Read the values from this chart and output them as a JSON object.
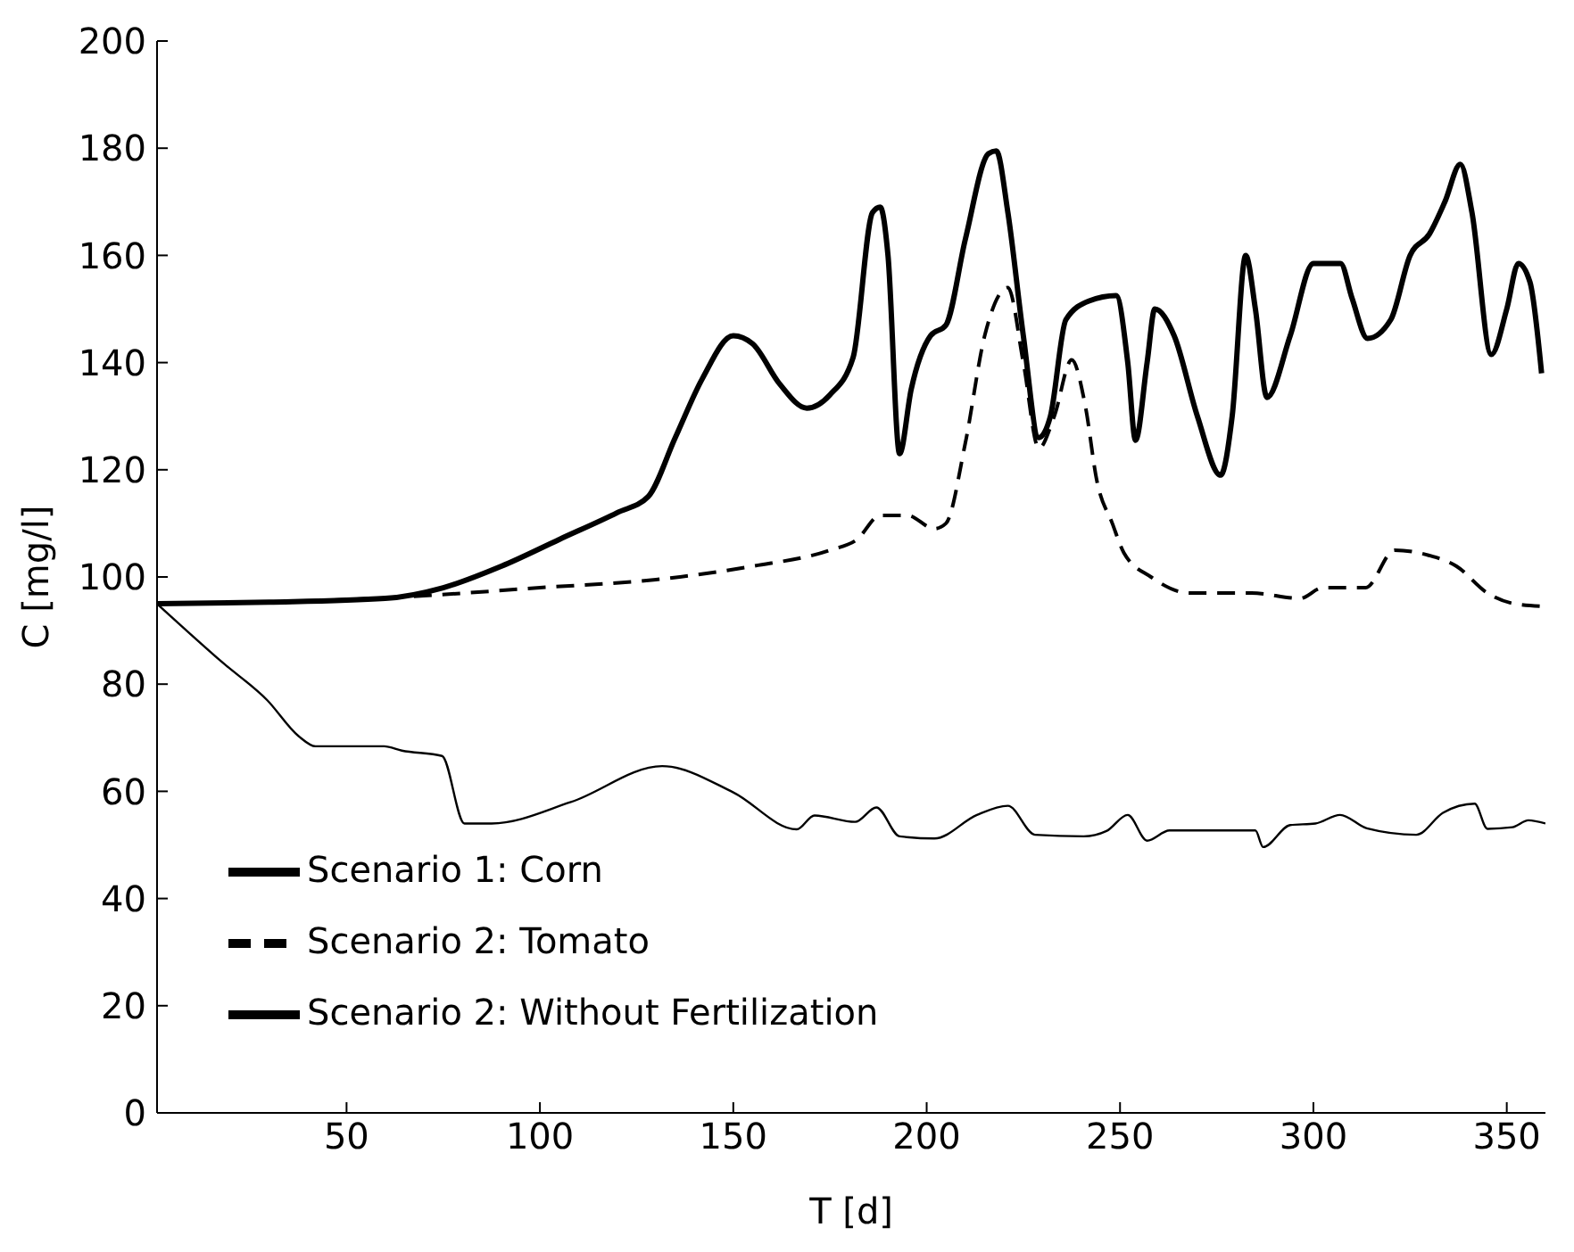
{
  "chart_data": {
    "type": "line",
    "xlabel": "T [d]",
    "ylabel": "C [mg/l]",
    "xlim": [
      1,
      360
    ],
    "xticks": [
      50,
      100,
      150,
      200,
      250,
      300,
      350
    ],
    "ylim": [
      0,
      200
    ],
    "yticks": [
      0,
      20,
      40,
      60,
      80,
      100,
      120,
      140,
      160,
      180,
      200
    ],
    "grid": false,
    "legend": "bottom left",
    "marker": "none",
    "series": [
      {
        "name": "Scenario 1: Corn",
        "color": "#000000",
        "line_style": "solid",
        "x": [
          1,
          30,
          60,
          75,
          90,
          105,
          120,
          128,
          135,
          142,
          150,
          155,
          162,
          169,
          175,
          181,
          186,
          188,
          190,
          193,
          196,
          201,
          205,
          210,
          216,
          218,
          221,
          225,
          229,
          232,
          236,
          242,
          249,
          252,
          254,
          257,
          259,
          264,
          270,
          276,
          279,
          282.5,
          285,
          288,
          294,
          300,
          307,
          310,
          314,
          320,
          325,
          330,
          334,
          338,
          341,
          346,
          350,
          353,
          356,
          359
        ],
        "values": [
          95,
          95.3,
          96,
          98,
          102,
          107,
          112,
          115,
          126,
          137,
          145,
          143.5,
          136,
          131.5,
          134,
          141,
          168,
          169,
          160,
          123,
          135,
          145,
          147,
          163,
          179,
          179.5,
          168,
          145,
          126,
          130,
          148,
          151.5,
          152.5,
          140,
          125.5,
          140,
          150,
          145,
          130,
          119,
          130,
          160,
          150,
          133.5,
          145,
          158.5,
          158.5,
          152,
          144.5,
          148,
          160,
          164,
          170,
          177,
          168,
          141.5,
          150,
          158.5,
          155,
          138
        ]
      },
      {
        "name": "Scenario 2: Tomato",
        "color": "#000000",
        "line_style": "dashed",
        "x": [
          1,
          40,
          70,
          100,
          130,
          155,
          175,
          182,
          188,
          195,
          202,
          205,
          210,
          215,
          221,
          225,
          229,
          233,
          237.5,
          241,
          244,
          248,
          251,
          258,
          268,
          284,
          296.5,
          302.5,
          313.5,
          321,
          330,
          337,
          345,
          352,
          360
        ],
        "values": [
          95,
          95.5,
          96.5,
          98,
          99.5,
          102,
          105,
          107,
          111.5,
          111.5,
          109,
          110,
          125,
          145,
          154,
          140,
          124,
          130,
          140.5,
          132,
          118,
          110,
          104.5,
          100,
          97,
          97,
          96,
          98,
          98,
          105,
          104,
          102,
          97,
          95,
          94.5
        ]
      },
      {
        "name": "Scenario 2: Without Fertilization",
        "color": "#000000",
        "line_style": "solid",
        "x": [
          1,
          18,
          29.5,
          37.6,
          42,
          59.7,
          64.3,
          74.7,
          80.5,
          87.5,
          108,
          131.6,
          150,
          166.4,
          171,
          181.5,
          187,
          193,
          202,
          213,
          221,
          228,
          240.6,
          246.5,
          252,
          257,
          262.8,
          285,
          287,
          294,
          300.5,
          306.9,
          313.8,
          326.6,
          333.5,
          341.7,
          345,
          351.5,
          355.6,
          360
        ],
        "values": [
          95,
          84,
          77,
          70.3,
          68.4,
          68.4,
          67.6,
          66.6,
          54,
          54,
          58,
          64.7,
          59.8,
          52.9,
          55.5,
          54.3,
          57,
          51.6,
          51.2,
          55.6,
          57.3,
          51.9,
          51.6,
          52.6,
          55.6,
          50.8,
          52.7,
          52.7,
          49.6,
          53.7,
          54,
          55.6,
          53.1,
          51.9,
          56,
          57.7,
          53,
          53.3,
          54.6,
          54
        ]
      }
    ]
  }
}
